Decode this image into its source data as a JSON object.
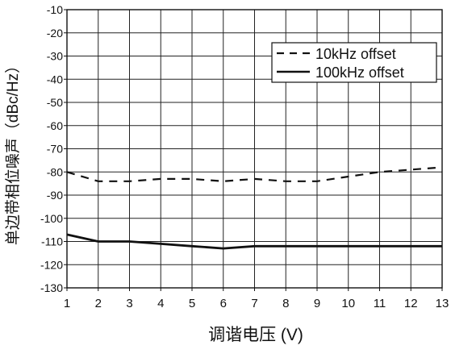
{
  "chart_data": {
    "type": "line",
    "xlabel": "调谐电压 (V)",
    "ylabel": "单边带相位噪声（dBc/Hz）",
    "xlim": [
      1,
      13
    ],
    "ylim": [
      -130,
      -10
    ],
    "x_ticks": [
      1,
      2,
      3,
      4,
      5,
      6,
      7,
      8,
      9,
      10,
      11,
      12,
      13
    ],
    "y_ticks": [
      -10,
      -20,
      -30,
      -40,
      -50,
      -60,
      -70,
      -80,
      -90,
      -100,
      -110,
      -120,
      -130
    ],
    "grid": true,
    "legend_position": "top-right",
    "series": [
      {
        "name": "10kHz offset",
        "style": "dashed",
        "color": "#111111",
        "x": [
          1,
          2,
          3,
          4,
          5,
          6,
          7,
          8,
          9,
          10,
          11,
          12,
          13
        ],
        "y": [
          -80,
          -84,
          -84,
          -83,
          -83,
          -84,
          -83,
          -84,
          -84,
          -82,
          -80,
          -79,
          -78
        ]
      },
      {
        "name": "100kHz offset",
        "style": "solid",
        "color": "#111111",
        "x": [
          1,
          2,
          3,
          4,
          5,
          6,
          7,
          8,
          9,
          10,
          11,
          12,
          13
        ],
        "y": [
          -107,
          -110,
          -110,
          -111,
          -112,
          -113,
          -112,
          -112,
          -112,
          -112,
          -112,
          -112,
          -112
        ]
      }
    ]
  }
}
